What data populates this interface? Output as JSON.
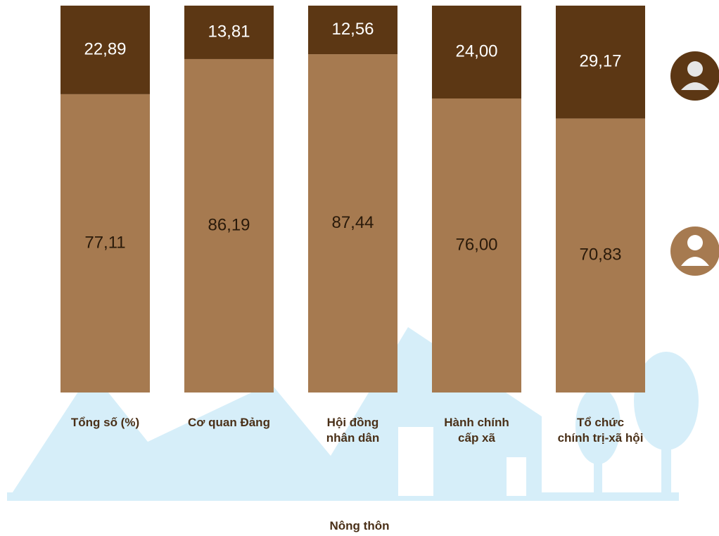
{
  "chart_data": {
    "type": "stacked_bar",
    "categories": [
      "Tổng số (%)",
      "Cơ quan Đảng",
      "Hội đồng\nnhân dân",
      "Hành chính\ncấp xã",
      "Tổ chức\nchính trị-xã hội"
    ],
    "series": [
      {
        "color": "#a67a50",
        "label_color": "#2a1a0a",
        "values": [
          77.11,
          86.19,
          87.44,
          76.0,
          70.83
        ],
        "value_labels": [
          "77,11",
          "86,19",
          "87,44",
          "76,00",
          "70,83"
        ]
      },
      {
        "color": "#5c3714",
        "label_color": "#ffffff",
        "values": [
          22.89,
          13.81,
          12.56,
          24.0,
          29.17
        ],
        "value_labels": [
          "22,89",
          "13,81",
          "12,56",
          "24,00",
          "29,17"
        ]
      }
    ],
    "ylim": [
      0,
      100
    ],
    "xlabel": "Nông thôn"
  }
}
